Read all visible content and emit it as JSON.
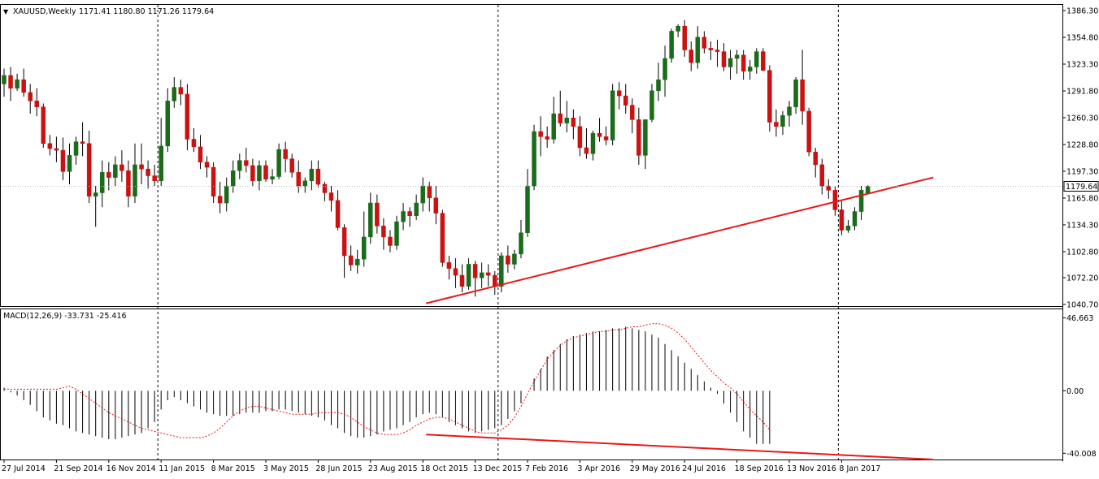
{
  "chart_data": [
    {
      "type": "candlestick",
      "header": {
        "marker": "▼",
        "symbol": "XAUUSD,Weekly",
        "ohlc": "1171.41 1180.80 1171.26 1179.64"
      },
      "current_price_label": "1179.64",
      "current_price": 1179.64,
      "y_ticks": [
        1386.3,
        1354.8,
        1323.3,
        1291.8,
        1260.3,
        1228.8,
        1197.3,
        1165.8,
        1134.3,
        1102.8,
        1072.2,
        1040.7
      ],
      "ylim": [
        1040.7,
        1386.3
      ],
      "x_tick_labels": [
        "27 Jul 2014",
        "21 Sep 2014",
        "16 Nov 2014",
        "11 Jan 2015",
        "8 Mar 2015",
        "3 May 2015",
        "28 Jun 2015",
        "23 Aug 2015",
        "18 Oct 2015",
        "13 Dec 2015",
        "7 Feb 2016",
        "3 Apr 2016",
        "29 May 2016",
        "24 Jul 2016",
        "18 Sep 2016",
        "13 Nov 2016",
        "8 Jan 2017"
      ],
      "x_tick_bar_index": [
        0,
        8,
        16,
        24,
        32,
        40,
        48,
        56,
        64,
        72,
        80,
        88,
        96,
        104,
        112,
        120,
        128
      ],
      "period_separators_bar_index": [
        23.5,
        75.5,
        127.5
      ],
      "bullish_color": "#1a6b1a",
      "bearish_color": "#cc1111",
      "candles_ohlc": [
        [
          1300,
          1318,
          1285,
          1310
        ],
        [
          1310,
          1320,
          1280,
          1295
        ],
        [
          1295,
          1312,
          1292,
          1305
        ],
        [
          1305,
          1318,
          1285,
          1290
        ],
        [
          1290,
          1300,
          1265,
          1280
        ],
        [
          1280,
          1295,
          1262,
          1273
        ],
        [
          1273,
          1277,
          1225,
          1230
        ],
        [
          1230,
          1240,
          1216,
          1224
        ],
        [
          1224,
          1238,
          1208,
          1222
        ],
        [
          1222,
          1237,
          1187,
          1197
        ],
        [
          1197,
          1230,
          1182,
          1216
        ],
        [
          1216,
          1238,
          1205,
          1232
        ],
        [
          1232,
          1255,
          1215,
          1230
        ],
        [
          1230,
          1245,
          1160,
          1168
        ],
        [
          1168,
          1180,
          1132,
          1172
        ],
        [
          1172,
          1210,
          1155,
          1196
        ],
        [
          1196,
          1208,
          1175,
          1190
        ],
        [
          1190,
          1215,
          1180,
          1205
        ],
        [
          1205,
          1222,
          1185,
          1198
        ],
        [
          1198,
          1210,
          1155,
          1168
        ],
        [
          1168,
          1230,
          1160,
          1205
        ],
        [
          1205,
          1230,
          1182,
          1200
        ],
        [
          1200,
          1210,
          1177,
          1192
        ],
        [
          1192,
          1205,
          1180,
          1186
        ],
        [
          1186,
          1260,
          1180,
          1227
        ],
        [
          1227,
          1295,
          1220,
          1280
        ],
        [
          1280,
          1308,
          1272,
          1296
        ],
        [
          1296,
          1305,
          1275,
          1288
        ],
        [
          1288,
          1300,
          1222,
          1235
        ],
        [
          1235,
          1248,
          1220,
          1226
        ],
        [
          1226,
          1240,
          1200,
          1208
        ],
        [
          1208,
          1215,
          1190,
          1202
        ],
        [
          1202,
          1208,
          1160,
          1168
        ],
        [
          1168,
          1185,
          1148,
          1160
        ],
        [
          1160,
          1190,
          1150,
          1180
        ],
        [
          1180,
          1210,
          1172,
          1198
        ],
        [
          1198,
          1218,
          1188,
          1210
        ],
        [
          1210,
          1225,
          1196,
          1204
        ],
        [
          1204,
          1212,
          1180,
          1186
        ],
        [
          1186,
          1210,
          1175,
          1204
        ],
        [
          1204,
          1210,
          1185,
          1188
        ],
        [
          1188,
          1200,
          1182,
          1191
        ],
        [
          1191,
          1230,
          1188,
          1223
        ],
        [
          1223,
          1232,
          1196,
          1212
        ],
        [
          1212,
          1218,
          1190,
          1196
        ],
        [
          1196,
          1210,
          1172,
          1180
        ],
        [
          1180,
          1190,
          1172,
          1186
        ],
        [
          1186,
          1210,
          1175,
          1200
        ],
        [
          1200,
          1210,
          1178,
          1182
        ],
        [
          1182,
          1185,
          1162,
          1172
        ],
        [
          1172,
          1180,
          1150,
          1163
        ],
        [
          1163,
          1175,
          1128,
          1131
        ],
        [
          1131,
          1135,
          1072,
          1098
        ],
        [
          1098,
          1110,
          1080,
          1087
        ],
        [
          1087,
          1105,
          1077,
          1094
        ],
        [
          1094,
          1150,
          1085,
          1120
        ],
        [
          1120,
          1172,
          1112,
          1160
        ],
        [
          1160,
          1170,
          1124,
          1133
        ],
        [
          1133,
          1142,
          1105,
          1120
        ],
        [
          1120,
          1128,
          1102,
          1110
        ],
        [
          1110,
          1145,
          1105,
          1138
        ],
        [
          1138,
          1160,
          1128,
          1150
        ],
        [
          1150,
          1155,
          1132,
          1145
        ],
        [
          1145,
          1170,
          1140,
          1160
        ],
        [
          1160,
          1190,
          1150,
          1180
        ],
        [
          1180,
          1185,
          1150,
          1166
        ],
        [
          1166,
          1180,
          1135,
          1148
        ],
        [
          1148,
          1152,
          1085,
          1090
        ],
        [
          1090,
          1098,
          1070,
          1083
        ],
        [
          1083,
          1095,
          1060,
          1075
        ],
        [
          1075,
          1088,
          1055,
          1062
        ],
        [
          1062,
          1095,
          1058,
          1088
        ],
        [
          1088,
          1092,
          1050,
          1072
        ],
        [
          1072,
          1090,
          1060,
          1078
        ],
        [
          1078,
          1088,
          1062,
          1075
        ],
        [
          1075,
          1080,
          1052,
          1062
        ],
        [
          1062,
          1102,
          1055,
          1098
        ],
        [
          1098,
          1110,
          1078,
          1088
        ],
        [
          1088,
          1105,
          1082,
          1100
        ],
        [
          1100,
          1140,
          1095,
          1125
        ],
        [
          1125,
          1200,
          1120,
          1180
        ],
        [
          1180,
          1252,
          1175,
          1244
        ],
        [
          1244,
          1262,
          1215,
          1238
        ],
        [
          1238,
          1250,
          1225,
          1235
        ],
        [
          1235,
          1285,
          1230,
          1265
        ],
        [
          1265,
          1292,
          1250,
          1254
        ],
        [
          1254,
          1280,
          1243,
          1260
        ],
        [
          1260,
          1270,
          1235,
          1250
        ],
        [
          1250,
          1262,
          1215,
          1225
        ],
        [
          1225,
          1248,
          1212,
          1218
        ],
        [
          1218,
          1245,
          1210,
          1242
        ],
        [
          1242,
          1260,
          1232,
          1238
        ],
        [
          1238,
          1250,
          1228,
          1234
        ],
        [
          1234,
          1300,
          1228,
          1292
        ],
        [
          1292,
          1302,
          1270,
          1286
        ],
        [
          1286,
          1300,
          1265,
          1275
        ],
        [
          1275,
          1283,
          1242,
          1258
        ],
        [
          1258,
          1272,
          1205,
          1216
        ],
        [
          1216,
          1258,
          1200,
          1258
        ],
        [
          1258,
          1300,
          1255,
          1292
        ],
        [
          1292,
          1325,
          1280,
          1305
        ],
        [
          1305,
          1345,
          1285,
          1330
        ],
        [
          1330,
          1365,
          1325,
          1362
        ],
        [
          1362,
          1370,
          1355,
          1368
        ],
        [
          1368,
          1375,
          1332,
          1340
        ],
        [
          1340,
          1350,
          1315,
          1325
        ],
        [
          1325,
          1368,
          1318,
          1355
        ],
        [
          1355,
          1362,
          1336,
          1342
        ],
        [
          1342,
          1350,
          1328,
          1340
        ],
        [
          1340,
          1352,
          1320,
          1338
        ],
        [
          1338,
          1348,
          1315,
          1320
        ],
        [
          1320,
          1340,
          1305,
          1330
        ],
        [
          1330,
          1340,
          1312,
          1334
        ],
        [
          1334,
          1340,
          1305,
          1315
        ],
        [
          1315,
          1328,
          1305,
          1320
        ],
        [
          1320,
          1342,
          1312,
          1338
        ],
        [
          1338,
          1342,
          1315,
          1316
        ],
        [
          1316,
          1322,
          1244,
          1255
        ],
        [
          1255,
          1270,
          1238,
          1250
        ],
        [
          1250,
          1268,
          1240,
          1263
        ],
        [
          1263,
          1280,
          1250,
          1273
        ],
        [
          1273,
          1308,
          1265,
          1305
        ],
        [
          1305,
          1340,
          1252,
          1268
        ],
        [
          1268,
          1272,
          1215,
          1220
        ],
        [
          1220,
          1225,
          1190,
          1205
        ],
        [
          1205,
          1212,
          1170,
          1180
        ],
        [
          1180,
          1188,
          1165,
          1175
        ],
        [
          1175,
          1180,
          1145,
          1152
        ],
        [
          1152,
          1162,
          1122,
          1128
        ],
        [
          1128,
          1140,
          1125,
          1133
        ],
        [
          1133,
          1155,
          1128,
          1150
        ],
        [
          1150,
          1180,
          1140,
          1175
        ],
        [
          1171.41,
          1180.8,
          1171.26,
          1179.64
        ]
      ],
      "trendline_points": [
        [
          64.5,
          1042
        ],
        [
          142,
          1190
        ]
      ]
    },
    {
      "type": "macd",
      "label": "MACD(12,26,9) -33.731 -25.416",
      "params": "12,26,9",
      "macd_value": -33.731,
      "signal_value": -25.416,
      "y_ticks": [
        46.663,
        0.0,
        -40.008
      ],
      "ylim": [
        -44,
        48
      ],
      "histogram": [
        2,
        -1,
        -3,
        -6,
        -9,
        -13,
        -17,
        -19,
        -21,
        -22,
        -24,
        -26,
        -27,
        -28,
        -29,
        -30,
        -31,
        -31,
        -30,
        -29,
        -28,
        -27,
        -24,
        -20,
        -12,
        -6,
        -4,
        -6,
        -8,
        -10,
        -12,
        -14,
        -15,
        -16,
        -16,
        -16,
        -15,
        -14,
        -14,
        -14,
        -13,
        -13,
        -12,
        -12,
        -13,
        -14,
        -15,
        -16,
        -17,
        -19,
        -22,
        -24,
        -27,
        -29,
        -30,
        -30,
        -29,
        -28,
        -26,
        -25,
        -24,
        -22,
        -20,
        -17,
        -15,
        -14,
        -15,
        -17,
        -20,
        -22,
        -24,
        -26,
        -27,
        -26,
        -25,
        -24,
        -22,
        -18,
        -13,
        -8,
        0,
        8,
        14,
        22,
        26,
        30,
        33,
        35,
        36,
        37,
        38,
        38,
        39,
        40,
        40,
        41,
        40,
        39,
        38,
        36,
        34,
        30,
        26,
        22,
        18,
        14,
        10,
        6,
        2,
        -2,
        -8,
        -14,
        -20,
        -26,
        -30,
        -34,
        -34,
        -34
      ],
      "hist_start_index": 0,
      "signal": [
        1,
        1,
        1,
        1,
        1,
        1,
        1,
        1,
        1,
        2,
        3,
        1,
        -2,
        -5,
        -8,
        -11,
        -14,
        -16,
        -18,
        -20,
        -22,
        -24,
        -25,
        -26,
        -27,
        -28,
        -29,
        -30,
        -30,
        -30,
        -30,
        -29,
        -27,
        -24,
        -20,
        -16,
        -13,
        -11,
        -10,
        -10,
        -11,
        -12,
        -13,
        -14,
        -15,
        -15,
        -15,
        -15,
        -14,
        -14,
        -14,
        -14,
        -15,
        -17,
        -20,
        -23,
        -25,
        -27,
        -28,
        -28,
        -28,
        -27,
        -25,
        -22,
        -20,
        -18,
        -17,
        -17,
        -18,
        -20,
        -22,
        -24,
        -26,
        -27,
        -27,
        -27,
        -25,
        -22,
        -17,
        -10,
        -2,
        6,
        13,
        20,
        25,
        29,
        32,
        34,
        35,
        36,
        37,
        38,
        38,
        39,
        39,
        40,
        41,
        41,
        42,
        43,
        43,
        42,
        40,
        37,
        33,
        28,
        23,
        18,
        13,
        9,
        5,
        2,
        -2,
        -7,
        -12,
        -16,
        -20,
        -25
      ],
      "trendline_points": [
        [
          64.5,
          -28
        ],
        [
          142,
          -44
        ]
      ]
    }
  ]
}
